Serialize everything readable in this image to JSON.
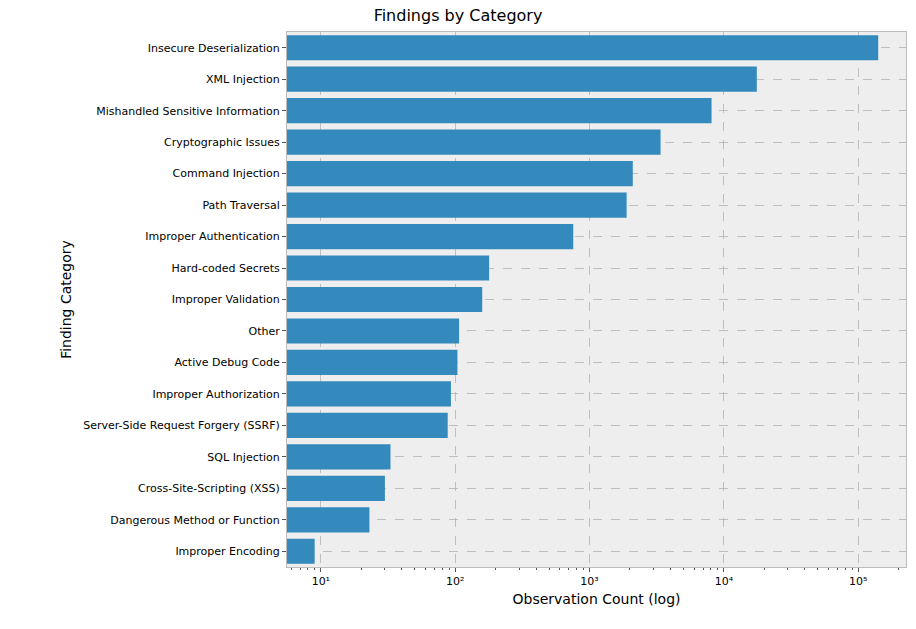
{
  "chart_data": {
    "type": "bar",
    "orientation": "horizontal",
    "title": "Findings by Category",
    "x_label": "Observation Count (log)",
    "y_label": "Finding Category",
    "categories": [
      "Insecure Deserialization",
      "XML Injection",
      "Mishandled Sensitive Information",
      "Cryptographic Issues",
      "Command Injection",
      "Path Traversal",
      "Improper Authentication",
      "Hard-coded Secrets",
      "Improper Validation",
      "Other",
      "Active Debug Code",
      "Improper Authorization",
      "Server-Side Request Forgery (SSRF)",
      "SQL Injection",
      "Cross-Site-Scripting (XSS)",
      "Dangerous Method or Function",
      "Improper Encoding"
    ],
    "values": [
      141000,
      17600,
      8100,
      3380,
      2100,
      1890,
      757,
      179,
      159,
      107,
      104,
      93,
      88,
      33,
      30,
      23,
      9
    ],
    "color": "#348ABD",
    "log": "x",
    "xlim": [
      5.6,
      227000
    ],
    "xticks": [
      {
        "value": 10,
        "label": "10¹"
      },
      {
        "value": 100,
        "label": "10²"
      },
      {
        "value": 1000,
        "label": "10³"
      },
      {
        "value": 10000,
        "label": "10⁴"
      },
      {
        "value": 100000,
        "label": "10⁵"
      }
    ],
    "grid": true
  }
}
